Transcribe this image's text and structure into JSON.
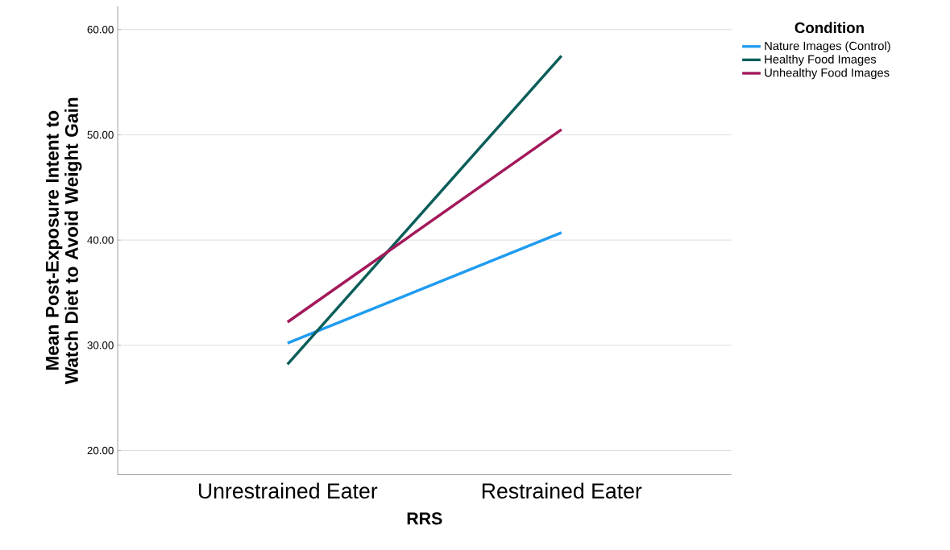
{
  "chart_data": {
    "type": "line",
    "xlabel": "RRS",
    "ylabel": "Mean Post-Exposure Intent to Watch Diet to Avoid Weight Gain",
    "legend_title": "Condition",
    "categories": [
      "Unrestrained Eater",
      "Restrained Eater"
    ],
    "series": [
      {
        "name": "Nature Images (Control)",
        "color": "#1f9cf0",
        "values": [
          30.2,
          40.7
        ]
      },
      {
        "name": "Healthy Food Images",
        "color": "#0b5e5a",
        "values": [
          28.2,
          57.5
        ]
      },
      {
        "name": "Unhealthy Food Images",
        "color": "#a3195b",
        "values": [
          32.2,
          50.5
        ]
      }
    ],
    "ylim": [
      17.7,
      62.2
    ],
    "yticks": [
      {
        "value": 20,
        "label": "20.00"
      },
      {
        "value": 30,
        "label": "30.00"
      },
      {
        "value": 40,
        "label": "40.00"
      },
      {
        "value": 50,
        "label": "50.00"
      },
      {
        "value": 60,
        "label": "60.00"
      }
    ],
    "grid": "y",
    "legend": "right",
    "marker": "none",
    "line_style": "solid"
  }
}
